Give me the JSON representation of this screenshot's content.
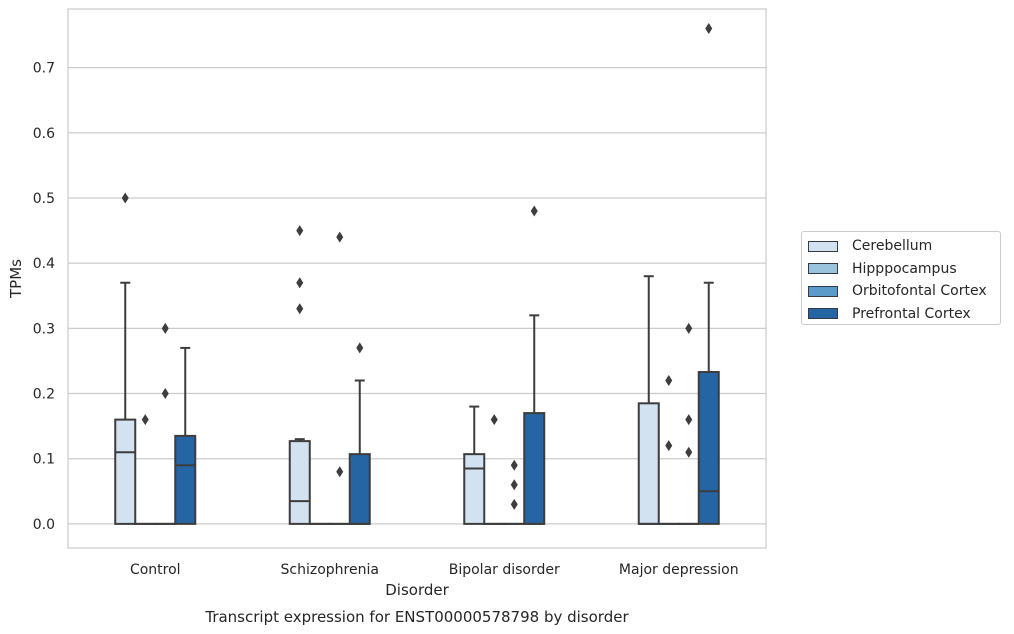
{
  "chart_data": {
    "type": "box",
    "title": "Transcript expression for ENST00000578798 by disorder",
    "xlabel": "Disorder",
    "ylabel": "TPMs",
    "ylim": [
      -0.037,
      0.79
    ],
    "yticks": [
      0.0,
      0.1,
      0.2,
      0.3,
      0.4,
      0.5,
      0.6,
      0.7
    ],
    "ytick_labels": [
      "0.0",
      "0.1",
      "0.2",
      "0.3",
      "0.4",
      "0.5",
      "0.6",
      "0.7"
    ],
    "categories": [
      "Control",
      "Schizophrenia",
      "Bipolar disorder",
      "Major depression"
    ],
    "grid": "horizontal",
    "legend_position": "right",
    "series": [
      {
        "name": "Cerebellum",
        "color": "#d2e2f0",
        "boxes": [
          {
            "min": 0.0,
            "q1": 0.0,
            "median": 0.11,
            "q3": 0.16,
            "max": 0.37,
            "outliers": [
              0.5
            ]
          },
          {
            "min": 0.0,
            "q1": 0.0,
            "median": 0.035,
            "q3": 0.127,
            "max": 0.13,
            "outliers": [
              0.33,
              0.37,
              0.45
            ]
          },
          {
            "min": 0.0,
            "q1": 0.0,
            "median": 0.085,
            "q3": 0.107,
            "max": 0.18,
            "outliers": []
          },
          {
            "min": 0.0,
            "q1": 0.0,
            "median": 0.0,
            "q3": 0.185,
            "max": 0.38,
            "outliers": []
          }
        ]
      },
      {
        "name": "Hipppocampus",
        "color": "#9ac3dd",
        "boxes": [
          {
            "min": 0.0,
            "q1": 0.0,
            "median": 0.0,
            "q3": 0.0,
            "max": 0.0,
            "outliers": [
              0.16
            ]
          },
          {
            "min": 0.0,
            "q1": 0.0,
            "median": 0.0,
            "q3": 0.0,
            "max": 0.0,
            "outliers": []
          },
          {
            "min": 0.0,
            "q1": 0.0,
            "median": 0.0,
            "q3": 0.0,
            "max": 0.0,
            "outliers": [
              0.16
            ]
          },
          {
            "min": 0.0,
            "q1": 0.0,
            "median": 0.0,
            "q3": 0.0,
            "max": 0.0,
            "outliers": [
              0.12,
              0.22
            ]
          }
        ]
      },
      {
        "name": "Orbitofontal Cortex",
        "color": "#5b9bc9",
        "boxes": [
          {
            "min": 0.0,
            "q1": 0.0,
            "median": 0.0,
            "q3": 0.0,
            "max": 0.0,
            "outliers": [
              0.2,
              0.3
            ]
          },
          {
            "min": 0.0,
            "q1": 0.0,
            "median": 0.0,
            "q3": 0.0,
            "max": 0.0,
            "outliers": [
              0.08,
              0.44
            ]
          },
          {
            "min": 0.0,
            "q1": 0.0,
            "median": 0.0,
            "q3": 0.0,
            "max": 0.0,
            "outliers": [
              0.03,
              0.06,
              0.09
            ]
          },
          {
            "min": 0.0,
            "q1": 0.0,
            "median": 0.0,
            "q3": 0.0,
            "max": 0.0,
            "outliers": [
              0.11,
              0.16,
              0.3
            ]
          }
        ]
      },
      {
        "name": "Prefrontal Cortex",
        "color": "#2565a3",
        "boxes": [
          {
            "min": 0.0,
            "q1": 0.0,
            "median": 0.09,
            "q3": 0.135,
            "max": 0.27,
            "outliers": []
          },
          {
            "min": 0.0,
            "q1": 0.0,
            "median": 0.0,
            "q3": 0.107,
            "max": 0.22,
            "outliers": [
              0.27
            ]
          },
          {
            "min": 0.0,
            "q1": 0.0,
            "median": 0.0,
            "q3": 0.17,
            "max": 0.32,
            "outliers": [
              0.48
            ]
          },
          {
            "min": 0.0,
            "q1": 0.0,
            "median": 0.05,
            "q3": 0.233,
            "max": 0.37,
            "outliers": [
              0.76
            ]
          }
        ]
      }
    ]
  }
}
